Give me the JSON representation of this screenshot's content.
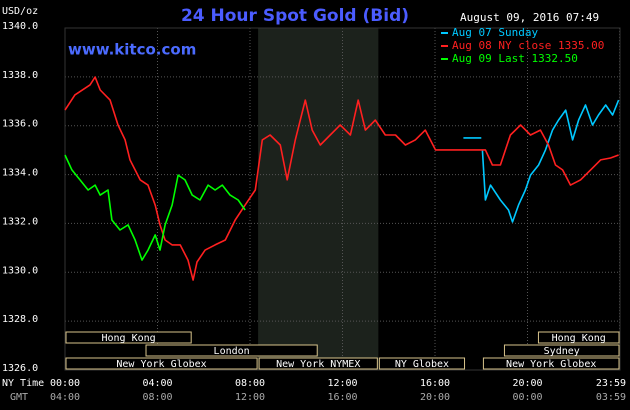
{
  "chart_data": {
    "type": "line",
    "title": "24 Hour Spot Gold (Bid)",
    "unit_label": "USD/oz",
    "timestamp": "August 09, 2016 07:49",
    "watermark": "www.kitco.com",
    "x_axis_label": "NY Time",
    "x2_axis_label": "GMT",
    "xlim": [
      0,
      24
    ],
    "xticks": [
      {
        "value": 0,
        "label": "00:00"
      },
      {
        "value": 4,
        "label": "04:00"
      },
      {
        "value": 8,
        "label": "08:00"
      },
      {
        "value": 12,
        "label": "12:00"
      },
      {
        "value": 16,
        "label": "16:00"
      },
      {
        "value": 20,
        "label": "20:00"
      },
      {
        "value": 23.983,
        "label": "23:59"
      }
    ],
    "x2ticks": [
      {
        "value": 0,
        "label": "04:00"
      },
      {
        "value": 4,
        "label": "08:00"
      },
      {
        "value": 8,
        "label": "12:00"
      },
      {
        "value": 12,
        "label": "16:00"
      },
      {
        "value": 16,
        "label": "20:00"
      },
      {
        "value": 20,
        "label": "00:00"
      },
      {
        "value": 23.983,
        "label": "03:59"
      }
    ],
    "ylim": [
      1326,
      1340
    ],
    "yticks": [
      {
        "value": 1326,
        "label": "1326.0"
      },
      {
        "value": 1328,
        "label": "1328.0"
      },
      {
        "value": 1330,
        "label": "1330.0"
      },
      {
        "value": 1332,
        "label": "1332.0"
      },
      {
        "value": 1334,
        "label": "1334.0"
      },
      {
        "value": 1336,
        "label": "1336.0"
      },
      {
        "value": 1338,
        "label": "1338.0"
      },
      {
        "value": 1340,
        "label": "1340.0"
      }
    ],
    "grid": true,
    "shaded_range": [
      8.35,
      13.55
    ],
    "series": [
      {
        "name": "Aug 07 Sunday",
        "color": "#00c8ff",
        "x": [
          17.23,
          18.0,
          null,
          18.05,
          18.18,
          18.4,
          18.83,
          19.18,
          19.35,
          19.61,
          19.91,
          20.13,
          20.48,
          20.78,
          21.08,
          21.34,
          21.65,
          21.95,
          22.21,
          22.51,
          22.81,
          23.07,
          23.38,
          23.68,
          23.94
        ],
        "values": [
          1335.5,
          1335.5,
          null,
          1335.01,
          1332.96,
          1333.57,
          1332.96,
          1332.55,
          1332.06,
          1332.75,
          1333.37,
          1333.98,
          1334.39,
          1335.01,
          1335.82,
          1336.23,
          1336.64,
          1335.42,
          1336.23,
          1336.85,
          1336.03,
          1336.44,
          1336.85,
          1336.44,
          1337.05
        ]
      },
      {
        "name": "Aug 08 NY close 1335.00",
        "color": "#ff2020",
        "x": [
          0,
          0.43,
          1.08,
          1.3,
          1.52,
          1.95,
          2.29,
          2.6,
          2.81,
          3.25,
          3.59,
          3.9,
          4.11,
          4.33,
          4.63,
          4.98,
          5.32,
          5.54,
          5.71,
          6.06,
          6.49,
          6.93,
          7.36,
          7.79,
          8.23,
          8.53,
          8.87,
          9.31,
          9.61,
          9.96,
          10.39,
          10.69,
          11.04,
          11.47,
          11.9,
          12.34,
          12.68,
          12.99,
          13.42,
          13.85,
          14.29,
          14.72,
          15.15,
          15.58,
          16.02,
          16.45,
          16.88,
          17.32,
          17.75,
          18.18,
          18.48,
          18.83,
          19.26,
          19.7,
          20.13,
          20.56,
          20.91,
          21.21,
          21.52,
          21.86,
          22.29,
          22.73,
          23.16,
          23.59,
          23.94
        ],
        "values": [
          1336.64,
          1337.26,
          1337.67,
          1337.99,
          1337.46,
          1337.05,
          1336.03,
          1335.42,
          1334.6,
          1333.78,
          1333.57,
          1332.75,
          1331.94,
          1331.32,
          1331.12,
          1331.12,
          1330.5,
          1329.68,
          1330.42,
          1330.91,
          1331.12,
          1331.32,
          1332.14,
          1332.75,
          1333.37,
          1335.42,
          1335.62,
          1335.21,
          1333.78,
          1335.42,
          1337.05,
          1335.82,
          1335.21,
          1335.62,
          1336.03,
          1335.62,
          1337.05,
          1335.82,
          1336.23,
          1335.62,
          1335.62,
          1335.21,
          1335.42,
          1335.82,
          1335.01,
          1335.01,
          1335.01,
          1335.01,
          1335.01,
          1335.01,
          1334.39,
          1334.39,
          1335.62,
          1336.03,
          1335.62,
          1335.82,
          1335.21,
          1334.39,
          1334.19,
          1333.57,
          1333.78,
          1334.19,
          1334.6,
          1334.68,
          1334.8
        ]
      },
      {
        "name": "Aug 09 Last 1332.50",
        "color": "#00ff00",
        "x": [
          0,
          0.3,
          0.65,
          1.0,
          1.3,
          1.52,
          1.86,
          2.03,
          2.38,
          2.73,
          3.03,
          3.33,
          3.59,
          3.9,
          4.11,
          4.33,
          4.63,
          4.89,
          5.19,
          5.5,
          5.84,
          6.19,
          6.49,
          6.8,
          7.14,
          7.49,
          7.79
        ],
        "values": [
          1334.8,
          1334.19,
          1333.78,
          1333.37,
          1333.57,
          1333.16,
          1333.37,
          1332.14,
          1331.73,
          1331.94,
          1331.32,
          1330.5,
          1330.91,
          1331.53,
          1330.91,
          1331.94,
          1332.75,
          1333.98,
          1333.78,
          1333.16,
          1332.96,
          1333.57,
          1333.37,
          1333.57,
          1333.16,
          1332.96,
          1332.55
        ]
      }
    ],
    "sessions": [
      [
        {
          "label": "Hong Kong",
          "start": 0,
          "end": 5.5
        },
        {
          "label": "Hong Kong",
          "start": 20.43,
          "end": 24
        }
      ],
      [
        {
          "label": "London",
          "start": 3.46,
          "end": 10.95
        },
        {
          "label": "Sydney",
          "start": 18.96,
          "end": 24
        }
      ],
      [
        {
          "label": "New York Globex",
          "start": 0,
          "end": 8.35
        },
        {
          "label": "New York NYMEX",
          "start": 8.35,
          "end": 13.55
        },
        {
          "label": "NY Globex",
          "start": 13.55,
          "end": 17.32
        },
        {
          "label": "New York Globex",
          "start": 18.05,
          "end": 24
        }
      ]
    ]
  }
}
